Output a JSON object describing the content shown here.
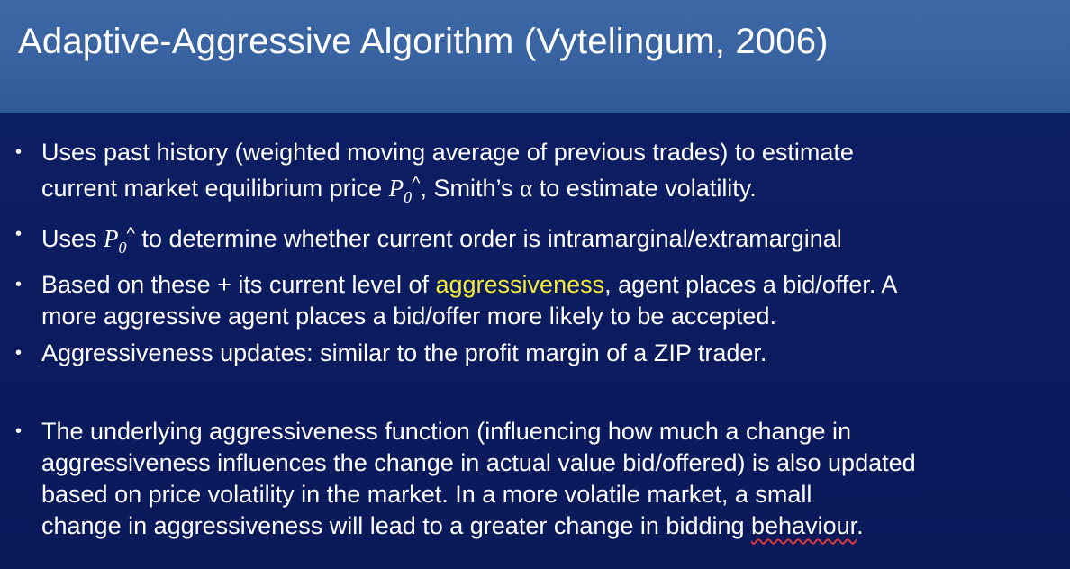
{
  "title": "Adaptive-Aggressive Algorithm (Vytelingum, 2006)",
  "bullet_marker": "•",
  "bullets": [
    {
      "line1": "Uses past history (weighted moving average of previous trades) to estimate",
      "line2_pre": "current market equilibrium price ",
      "symbol_p": "P",
      "symbol_sub": "0",
      "symbol_caret": "^",
      "line2_mid": ", Smith’s ",
      "alpha": "α",
      "line2_post": " to estimate volatility."
    },
    {
      "pre": "Uses ",
      "symbol_p": "P",
      "symbol_sub": "0",
      "symbol_caret": "^",
      "post": " to determine whether current order is intramarginal/extramarginal"
    },
    {
      "line1_pre": "Based on these + its current level of ",
      "highlight": "aggressiveness",
      "line1_post": ", agent places a bid/offer. A",
      "line2": "more aggressive agent places a bid/offer more likely to be accepted."
    },
    {
      "text": "Aggressiveness updates: similar to the profit margin of a ZIP trader."
    },
    {
      "line1": "The underlying aggressiveness function (influencing how much a change in",
      "line2": "aggressiveness influences the change in actual value bid/offered) is also updated",
      "line3": "based on price volatility in the market. In a more volatile market, a small",
      "line4_pre": "change in aggressiveness will lead to a greater change in bidding ",
      "line4_word": "behaviour",
      "line4_post": "."
    }
  ],
  "colors": {
    "background": "#0c1d63",
    "title_bar": "#3862a0",
    "text": "#ffffff",
    "highlight": "#f4ea3a",
    "spellcheck_underline": "#d43a3a"
  }
}
